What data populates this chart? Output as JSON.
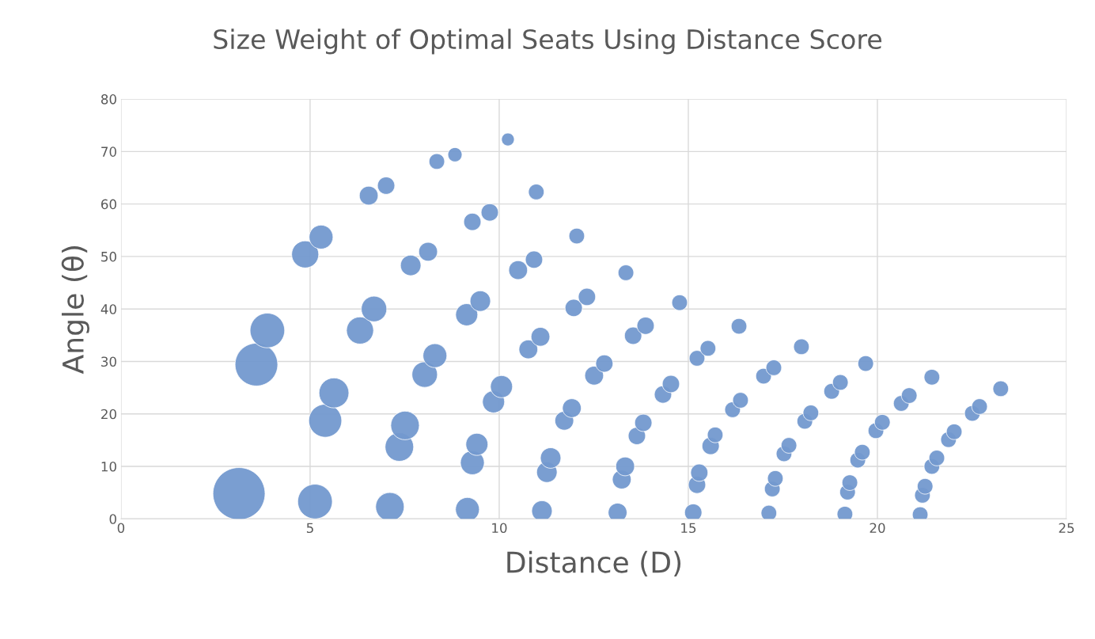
{
  "chart_data": {
    "type": "bubble",
    "title": "Size Weight of Optimal Seats Using Distance Score",
    "xlabel": "Distance (D)",
    "ylabel": "Angle (θ)",
    "xlim": [
      0,
      25
    ],
    "xticks": [
      0,
      5,
      10,
      15,
      20,
      25
    ],
    "ylim": [
      0,
      80
    ],
    "yticks": [
      0,
      10,
      20,
      30,
      40,
      50,
      60,
      70,
      80
    ],
    "grid": true,
    "legend": false,
    "series": [
      {
        "color": "#7399cf",
        "x": [
          3.12,
          3.58,
          3.87,
          4.87,
          5.29,
          5.13,
          5.4,
          5.63,
          6.32,
          6.69,
          6.55,
          7.01,
          7.11,
          7.36,
          7.51,
          8.03,
          8.3,
          7.66,
          8.12,
          8.35,
          8.83,
          10.23,
          9.16,
          9.29,
          9.41,
          9.14,
          9.5,
          9.29,
          9.75,
          9.85,
          10.06,
          10.5,
          10.92,
          10.98,
          11.13,
          11.26,
          11.36,
          10.77,
          11.09,
          11.72,
          11.92,
          11.97,
          12.32,
          12.05,
          13.13,
          13.24,
          13.33,
          12.51,
          12.78,
          13.35,
          13.54,
          13.87,
          13.64,
          13.81,
          14.77,
          14.33,
          14.54,
          15.13,
          15.23,
          15.29,
          15.23,
          15.52,
          15.59,
          15.71,
          16.34,
          16.17,
          16.38,
          17.13,
          17.22,
          17.3,
          16.99,
          17.26,
          17.53,
          17.66,
          17.99,
          18.08,
          18.24,
          18.79,
          19.02,
          19.14,
          19.21,
          19.27,
          19.48,
          19.6,
          19.69,
          19.96,
          20.13,
          20.63,
          20.84,
          21.13,
          21.19,
          21.26,
          21.44,
          21.57,
          21.44,
          21.88,
          22.03,
          22.51,
          22.7,
          23.26
        ],
        "values": [
          4.8,
          29.4,
          35.9,
          50.4,
          53.7,
          3.3,
          18.7,
          24.0,
          35.9,
          40.0,
          61.6,
          63.5,
          2.3,
          13.7,
          17.8,
          27.5,
          31.1,
          48.3,
          50.9,
          68.1,
          69.4,
          72.3,
          1.8,
          10.7,
          14.2,
          38.9,
          41.5,
          56.6,
          58.4,
          22.3,
          25.2,
          47.4,
          49.4,
          62.3,
          1.5,
          8.9,
          11.6,
          32.3,
          34.7,
          18.7,
          21.1,
          40.2,
          42.3,
          53.9,
          1.2,
          7.5,
          10.0,
          27.3,
          29.6,
          46.9,
          34.9,
          36.8,
          15.8,
          18.3,
          41.2,
          23.7,
          25.7,
          1.2,
          6.5,
          8.8,
          30.6,
          32.5,
          13.9,
          16.0,
          36.7,
          20.8,
          22.6,
          1.1,
          5.7,
          7.7,
          27.2,
          28.8,
          12.4,
          14.0,
          32.8,
          18.6,
          20.2,
          24.3,
          26.0,
          0.9,
          5.1,
          6.9,
          11.2,
          12.7,
          29.6,
          16.8,
          18.4,
          22.0,
          23.5,
          0.8,
          4.5,
          6.2,
          10.0,
          11.6,
          27.0,
          15.1,
          16.6,
          20.1,
          21.4,
          24.8
        ],
        "sizes": [
          1,
          0.67,
          0.44,
          0.27,
          0.21,
          0.44,
          0.4,
          0.33,
          0.27,
          0.24,
          0.13,
          0.11,
          0.3,
          0.3,
          0.3,
          0.24,
          0.21,
          0.155,
          0.13,
          0.09,
          0.074,
          0.06,
          0.21,
          0.21,
          0.18,
          0.18,
          0.155,
          0.11,
          0.11,
          0.18,
          0.18,
          0.13,
          0.11,
          0.09,
          0.155,
          0.155,
          0.155,
          0.13,
          0.13,
          0.13,
          0.13,
          0.11,
          0.11,
          0.09,
          0.13,
          0.13,
          0.13,
          0.13,
          0.11,
          0.09,
          0.11,
          0.11,
          0.11,
          0.11,
          0.09,
          0.11,
          0.11,
          0.11,
          0.11,
          0.11,
          0.09,
          0.09,
          0.11,
          0.09,
          0.09,
          0.09,
          0.09,
          0.09,
          0.09,
          0.09,
          0.09,
          0.09,
          0.09,
          0.09,
          0.09,
          0.09,
          0.09,
          0.09,
          0.09,
          0.09,
          0.09,
          0.09,
          0.09,
          0.09,
          0.09,
          0.09,
          0.09,
          0.09,
          0.09,
          0.09,
          0.09,
          0.09,
          0.09,
          0.09,
          0.09,
          0.09,
          0.09,
          0.09,
          0.09,
          0.09
        ]
      }
    ]
  }
}
